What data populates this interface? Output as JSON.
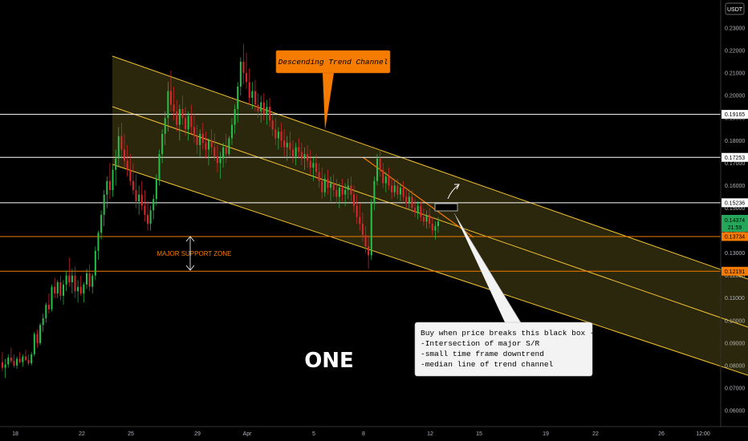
{
  "chart_data": {
    "type": "candlestick",
    "symbol_label": "ONE",
    "currency_label": "USDT",
    "x_ticks": [
      "18",
      "22",
      "25",
      "29",
      "Apr",
      "5",
      "8",
      "12",
      "15",
      "19",
      "22",
      "26",
      "12:00"
    ],
    "y_ticks": [
      "0.23000",
      "0.22000",
      "0.21000",
      "0.20000",
      "0.19000",
      "0.18000",
      "0.17000",
      "0.16000",
      "0.15000",
      "0.14000",
      "0.13000",
      "0.12000",
      "0.11000",
      "0.10000",
      "0.09000",
      "0.08000",
      "0.07000",
      "0.06000"
    ],
    "ylim": [
      0.055,
      0.237
    ],
    "last_price": {
      "value": "0.14374",
      "countdown": "21:59",
      "color": "#26a65b"
    },
    "horizontal_levels": [
      {
        "value": 0.19165,
        "label": "0.19165",
        "color": "#ffffff"
      },
      {
        "value": 0.17253,
        "label": "0.17253",
        "color": "#ffffff"
      },
      {
        "value": 0.15236,
        "label": "0.15236",
        "color": "#ffffff"
      },
      {
        "value": 0.13734,
        "label": "0.13734",
        "color": "#f57c00"
      },
      {
        "value": 0.12191,
        "label": "0.12191",
        "color": "#f57c00"
      }
    ],
    "ohlc": [
      [
        0.0815,
        0.086,
        0.0775,
        0.079
      ],
      [
        0.079,
        0.083,
        0.0745,
        0.0805
      ],
      [
        0.0805,
        0.085,
        0.079,
        0.0835
      ],
      [
        0.0835,
        0.088,
        0.081,
        0.082
      ],
      [
        0.082,
        0.085,
        0.079,
        0.08
      ],
      [
        0.08,
        0.084,
        0.0785,
        0.083
      ],
      [
        0.083,
        0.086,
        0.081,
        0.0815
      ],
      [
        0.0815,
        0.085,
        0.0795,
        0.084
      ],
      [
        0.084,
        0.087,
        0.082,
        0.0825
      ],
      [
        0.0825,
        0.085,
        0.08,
        0.081
      ],
      [
        0.081,
        0.086,
        0.08,
        0.085
      ],
      [
        0.085,
        0.095,
        0.084,
        0.094
      ],
      [
        0.094,
        0.096,
        0.088,
        0.09
      ],
      [
        0.09,
        0.099,
        0.089,
        0.098
      ],
      [
        0.098,
        0.103,
        0.095,
        0.101
      ],
      [
        0.101,
        0.108,
        0.099,
        0.107
      ],
      [
        0.107,
        0.112,
        0.103,
        0.105
      ],
      [
        0.105,
        0.116,
        0.104,
        0.115
      ],
      [
        0.115,
        0.119,
        0.11,
        0.112
      ],
      [
        0.112,
        0.118,
        0.11,
        0.117
      ],
      [
        0.117,
        0.12,
        0.109,
        0.111
      ],
      [
        0.111,
        0.118,
        0.107,
        0.116
      ],
      [
        0.116,
        0.122,
        0.113,
        0.12
      ],
      [
        0.12,
        0.128,
        0.115,
        0.117
      ],
      [
        0.117,
        0.123,
        0.112,
        0.12
      ],
      [
        0.12,
        0.124,
        0.11,
        0.113
      ],
      [
        0.113,
        0.118,
        0.108,
        0.115
      ],
      [
        0.115,
        0.12,
        0.111,
        0.112
      ],
      [
        0.112,
        0.117,
        0.108,
        0.116
      ],
      [
        0.116,
        0.123,
        0.114,
        0.121
      ],
      [
        0.121,
        0.125,
        0.113,
        0.115
      ],
      [
        0.115,
        0.121,
        0.112,
        0.12
      ],
      [
        0.12,
        0.133,
        0.118,
        0.131
      ],
      [
        0.131,
        0.14,
        0.127,
        0.139
      ],
      [
        0.139,
        0.149,
        0.136,
        0.147
      ],
      [
        0.147,
        0.158,
        0.142,
        0.156
      ],
      [
        0.156,
        0.164,
        0.15,
        0.162
      ],
      [
        0.162,
        0.17,
        0.154,
        0.158
      ],
      [
        0.158,
        0.169,
        0.155,
        0.167
      ],
      [
        0.167,
        0.176,
        0.16,
        0.172
      ],
      [
        0.172,
        0.186,
        0.168,
        0.182
      ],
      [
        0.182,
        0.188,
        0.172,
        0.176
      ],
      [
        0.176,
        0.183,
        0.168,
        0.171
      ],
      [
        0.171,
        0.178,
        0.164,
        0.167
      ],
      [
        0.167,
        0.174,
        0.16,
        0.162
      ],
      [
        0.162,
        0.17,
        0.156,
        0.158
      ],
      [
        0.158,
        0.165,
        0.15,
        0.153
      ],
      [
        0.153,
        0.16,
        0.147,
        0.156
      ],
      [
        0.156,
        0.162,
        0.149,
        0.151
      ],
      [
        0.151,
        0.158,
        0.144,
        0.147
      ],
      [
        0.147,
        0.153,
        0.14,
        0.143
      ],
      [
        0.143,
        0.151,
        0.14,
        0.149
      ],
      [
        0.149,
        0.156,
        0.145,
        0.154
      ],
      [
        0.154,
        0.165,
        0.151,
        0.163
      ],
      [
        0.163,
        0.176,
        0.16,
        0.174
      ],
      [
        0.174,
        0.185,
        0.17,
        0.183
      ],
      [
        0.183,
        0.193,
        0.178,
        0.19
      ],
      [
        0.19,
        0.206,
        0.184,
        0.202
      ],
      [
        0.202,
        0.211,
        0.193,
        0.196
      ],
      [
        0.196,
        0.204,
        0.189,
        0.193
      ],
      [
        0.193,
        0.198,
        0.184,
        0.187
      ],
      [
        0.187,
        0.196,
        0.18,
        0.194
      ],
      [
        0.194,
        0.2,
        0.187,
        0.19
      ],
      [
        0.19,
        0.195,
        0.182,
        0.185
      ],
      [
        0.185,
        0.193,
        0.18,
        0.191
      ],
      [
        0.191,
        0.196,
        0.183,
        0.186
      ],
      [
        0.186,
        0.192,
        0.179,
        0.182
      ],
      [
        0.182,
        0.187,
        0.174,
        0.178
      ],
      [
        0.178,
        0.185,
        0.172,
        0.183
      ],
      [
        0.183,
        0.188,
        0.176,
        0.179
      ],
      [
        0.179,
        0.184,
        0.172,
        0.176
      ],
      [
        0.176,
        0.181,
        0.169,
        0.18
      ],
      [
        0.18,
        0.185,
        0.174,
        0.177
      ],
      [
        0.177,
        0.183,
        0.171,
        0.173
      ],
      [
        0.173,
        0.178,
        0.166,
        0.17
      ],
      [
        0.17,
        0.175,
        0.163,
        0.172
      ],
      [
        0.172,
        0.179,
        0.168,
        0.177
      ],
      [
        0.177,
        0.183,
        0.17,
        0.174
      ],
      [
        0.174,
        0.182,
        0.173,
        0.181
      ],
      [
        0.181,
        0.19,
        0.178,
        0.187
      ],
      [
        0.187,
        0.196,
        0.183,
        0.194
      ],
      [
        0.194,
        0.206,
        0.188,
        0.204
      ],
      [
        0.204,
        0.217,
        0.2,
        0.215
      ],
      [
        0.215,
        0.223,
        0.205,
        0.21
      ],
      [
        0.21,
        0.219,
        0.203,
        0.206
      ],
      [
        0.206,
        0.212,
        0.196,
        0.199
      ],
      [
        0.199,
        0.206,
        0.194,
        0.202
      ],
      [
        0.202,
        0.207,
        0.193,
        0.196
      ],
      [
        0.196,
        0.201,
        0.19,
        0.193
      ],
      [
        0.193,
        0.2,
        0.188,
        0.197
      ],
      [
        0.197,
        0.201,
        0.189,
        0.192
      ],
      [
        0.192,
        0.198,
        0.187,
        0.195
      ],
      [
        0.195,
        0.199,
        0.186,
        0.189
      ],
      [
        0.189,
        0.193,
        0.182,
        0.185
      ],
      [
        0.185,
        0.19,
        0.178,
        0.181
      ],
      [
        0.181,
        0.186,
        0.176,
        0.184
      ],
      [
        0.184,
        0.188,
        0.177,
        0.18
      ],
      [
        0.18,
        0.185,
        0.173,
        0.177
      ],
      [
        0.177,
        0.182,
        0.171,
        0.179
      ],
      [
        0.179,
        0.184,
        0.173,
        0.176
      ],
      [
        0.176,
        0.18,
        0.17,
        0.173
      ],
      [
        0.173,
        0.179,
        0.169,
        0.177
      ],
      [
        0.177,
        0.181,
        0.172,
        0.175
      ],
      [
        0.175,
        0.179,
        0.169,
        0.172
      ],
      [
        0.172,
        0.177,
        0.167,
        0.174
      ],
      [
        0.174,
        0.178,
        0.168,
        0.171
      ],
      [
        0.171,
        0.176,
        0.165,
        0.168
      ],
      [
        0.168,
        0.173,
        0.162,
        0.17
      ],
      [
        0.17,
        0.174,
        0.163,
        0.166
      ],
      [
        0.166,
        0.17,
        0.159,
        0.162
      ],
      [
        0.162,
        0.168,
        0.154,
        0.157
      ],
      [
        0.157,
        0.165,
        0.155,
        0.163
      ],
      [
        0.163,
        0.167,
        0.156,
        0.159
      ],
      [
        0.159,
        0.164,
        0.153,
        0.161
      ],
      [
        0.161,
        0.165,
        0.155,
        0.158
      ],
      [
        0.158,
        0.163,
        0.152,
        0.155
      ],
      [
        0.155,
        0.161,
        0.15,
        0.159
      ],
      [
        0.159,
        0.163,
        0.153,
        0.156
      ],
      [
        0.156,
        0.161,
        0.151,
        0.158
      ],
      [
        0.158,
        0.163,
        0.154,
        0.16
      ],
      [
        0.16,
        0.164,
        0.153,
        0.156
      ],
      [
        0.156,
        0.16,
        0.148,
        0.151
      ],
      [
        0.151,
        0.156,
        0.143,
        0.146
      ],
      [
        0.146,
        0.152,
        0.14,
        0.143
      ],
      [
        0.143,
        0.148,
        0.135,
        0.138
      ],
      [
        0.138,
        0.142,
        0.13,
        0.133
      ],
      [
        0.133,
        0.138,
        0.123,
        0.129
      ],
      [
        0.129,
        0.154,
        0.127,
        0.152
      ],
      [
        0.152,
        0.164,
        0.149,
        0.162
      ],
      [
        0.162,
        0.174,
        0.16,
        0.172
      ],
      [
        0.172,
        0.176,
        0.164,
        0.167
      ],
      [
        0.167,
        0.17,
        0.159,
        0.161
      ],
      [
        0.161,
        0.166,
        0.157,
        0.164
      ],
      [
        0.164,
        0.168,
        0.158,
        0.16
      ],
      [
        0.16,
        0.163,
        0.154,
        0.157
      ],
      [
        0.157,
        0.162,
        0.155,
        0.16
      ],
      [
        0.16,
        0.163,
        0.154,
        0.156
      ],
      [
        0.156,
        0.161,
        0.153,
        0.159
      ],
      [
        0.159,
        0.162,
        0.153,
        0.155
      ],
      [
        0.155,
        0.158,
        0.15,
        0.152
      ],
      [
        0.152,
        0.157,
        0.149,
        0.155
      ],
      [
        0.155,
        0.158,
        0.148,
        0.15
      ],
      [
        0.15,
        0.154,
        0.146,
        0.148
      ],
      [
        0.148,
        0.153,
        0.145,
        0.151
      ],
      [
        0.151,
        0.153,
        0.144,
        0.146
      ],
      [
        0.146,
        0.15,
        0.142,
        0.144
      ],
      [
        0.144,
        0.149,
        0.141,
        0.147
      ],
      [
        0.147,
        0.15,
        0.141,
        0.143
      ],
      [
        0.143,
        0.146,
        0.138,
        0.14
      ],
      [
        0.14,
        0.144,
        0.136,
        0.142
      ],
      [
        0.142,
        0.146,
        0.139,
        0.144
      ]
    ]
  },
  "annotations": {
    "channel_label": "Descending Trend Channel",
    "support_label": "MAJOR SUPPORT ZONE",
    "symbol_big": "ONE",
    "callout_lines": [
      "Buy when price breaks this black box -",
      "-Intersection of major S/R",
      "-small time frame downtrend",
      "-median line of trend channel"
    ]
  },
  "colors": {
    "background": "#000000",
    "up": "#26c04a",
    "down": "#e0262d",
    "channel": "#f2c230",
    "channel_fill": "#3a3410",
    "callout_bg": "#f57c00",
    "note_bg": "#f3f3f3"
  }
}
